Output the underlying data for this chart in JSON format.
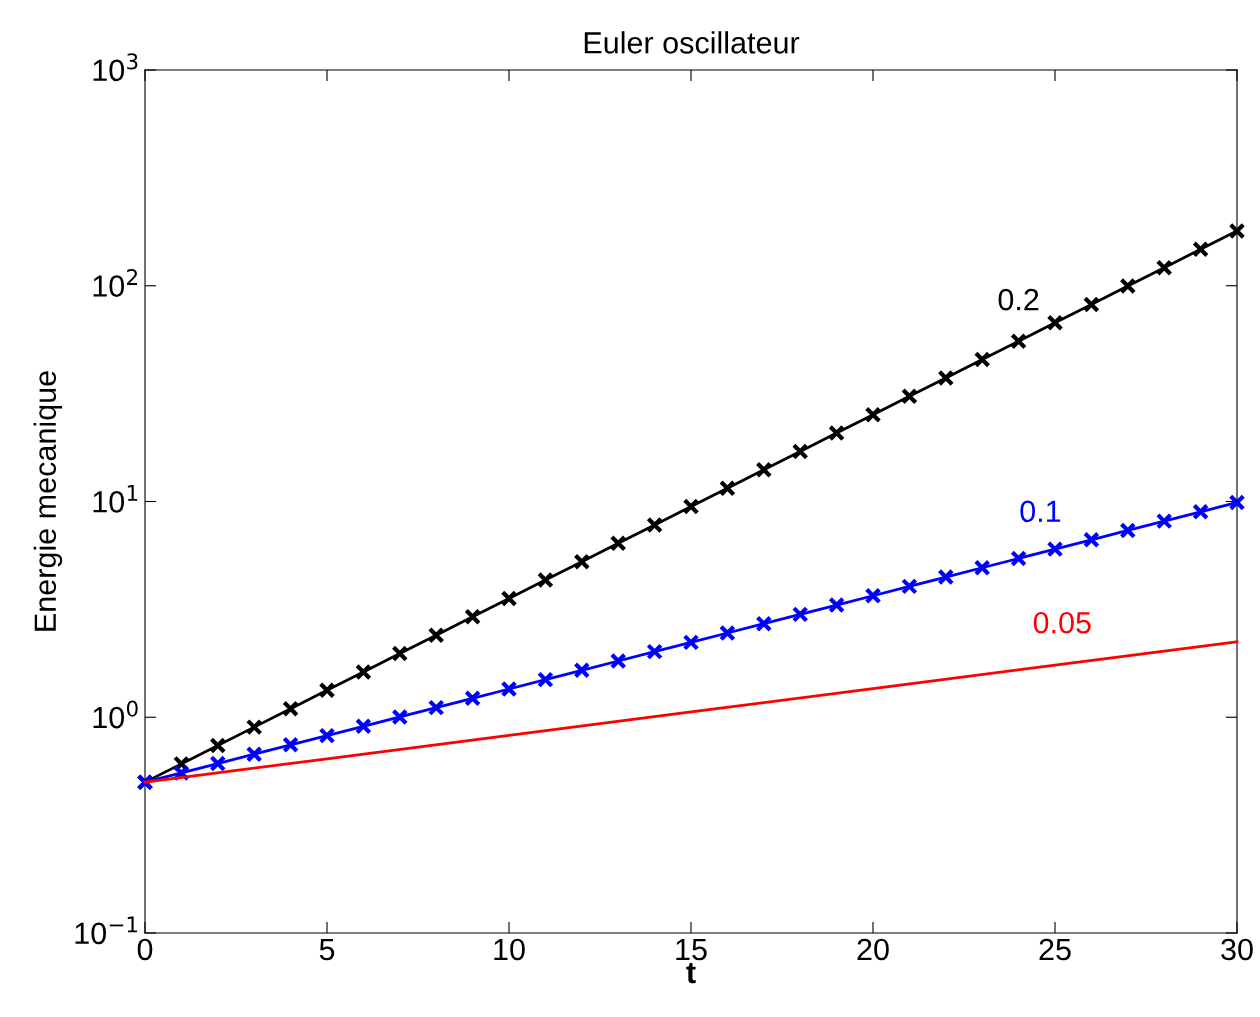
{
  "chart_data": {
    "type": "line",
    "title": "Euler oscillateur",
    "xlabel": "t",
    "ylabel": "Energie mecanique",
    "log": "y",
    "xlim": [
      0,
      30
    ],
    "ylim": [
      0.1,
      1000
    ],
    "xticks": [
      0,
      5,
      10,
      15,
      20,
      25,
      30
    ],
    "yticks": [
      {
        "value": 0.1,
        "label": "10$^{−1}$"
      },
      {
        "value": 1,
        "label": "10$^{0}$"
      },
      {
        "value": 10,
        "label": "10$^{1}$"
      },
      {
        "value": 100,
        "label": "10$^{2}$"
      },
      {
        "value": 1000,
        "label": "10$^{3}$"
      }
    ],
    "grid": false,
    "legend": false,
    "series": [
      {
        "name": "0.2",
        "color": "#000000",
        "marker": "cross",
        "x": [
          0,
          1,
          2,
          3,
          4,
          5,
          6,
          7,
          8,
          9,
          10,
          11,
          12,
          13,
          14,
          15,
          16,
          17,
          18,
          19,
          20,
          21,
          22,
          23,
          24,
          25,
          26,
          27,
          28,
          29,
          30
        ],
        "values": [
          0.5,
          0.608,
          0.74,
          0.9,
          1.096,
          1.333,
          1.622,
          1.973,
          2.401,
          2.921,
          3.554,
          4.324,
          5.261,
          6.401,
          7.788,
          9.475,
          11.53,
          14.03,
          17.06,
          20.76,
          25.26,
          30.73,
          37.39,
          45.49,
          55.35,
          67.34,
          81.93,
          99.68,
          121.3,
          147.6,
          179.5
        ]
      },
      {
        "name": "0.1",
        "color": "#0000ff",
        "marker": "cross",
        "x": [
          0,
          1,
          2,
          3,
          4,
          5,
          6,
          7,
          8,
          9,
          10,
          11,
          12,
          13,
          14,
          15,
          16,
          17,
          18,
          19,
          20,
          21,
          22,
          23,
          24,
          25,
          26,
          27,
          28,
          29,
          30
        ],
        "values": [
          0.5,
          0.552,
          0.61,
          0.674,
          0.745,
          0.822,
          0.908,
          1.003,
          1.108,
          1.224,
          1.352,
          1.494,
          1.65,
          1.823,
          2.014,
          2.224,
          2.457,
          2.714,
          2.998,
          3.312,
          3.658,
          4.041,
          4.464,
          4.931,
          5.447,
          6.017,
          6.646,
          7.342,
          8.11,
          8.958,
          9.895
        ]
      },
      {
        "name": "0.05",
        "color": "#ff0000",
        "marker": "none",
        "x": [
          0,
          5,
          10,
          15,
          20,
          25,
          30
        ],
        "values": [
          0.5,
          0.642,
          0.824,
          1.058,
          1.358,
          1.743,
          2.238
        ]
      }
    ]
  }
}
